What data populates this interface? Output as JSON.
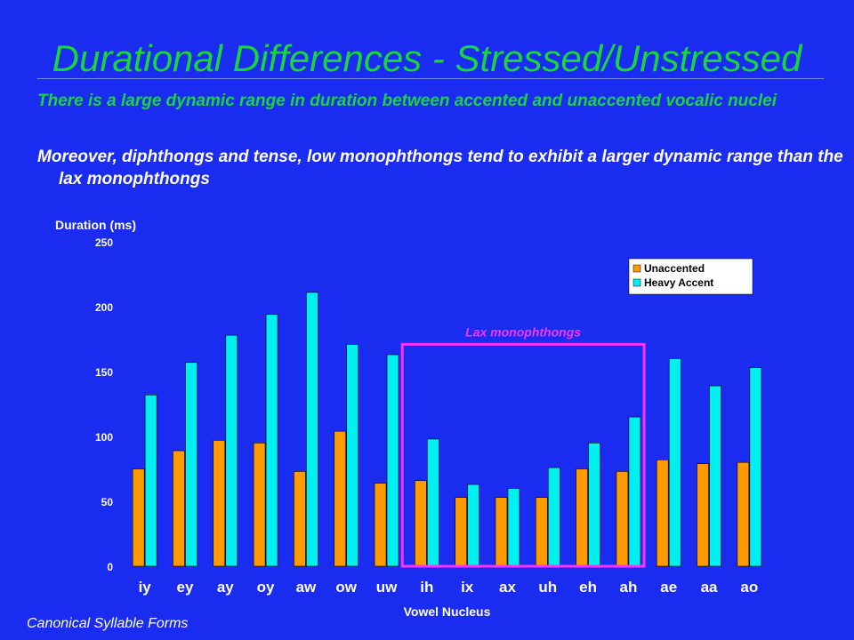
{
  "slide": {
    "title": "Durational Differences - Stressed/Unstressed",
    "bullets": [
      "There is a large dynamic range in duration between accented and unaccented vocalic nuclei",
      "Moreover, diphthongs and tense, low monophthongs tend to exhibit a larger dynamic range than the lax monophthongs"
    ],
    "footer": "Canonical Syllable Forms"
  },
  "colors": {
    "background": "#1a2cf0",
    "title_green": "#19d63a",
    "unaccented": "#ff9a00",
    "heavy_accent": "#00f0f0",
    "highlight_box": "#ff33ff"
  },
  "chart_data": {
    "type": "bar",
    "title": "",
    "ylabel": "Duration (ms)",
    "xlabel": "Vowel Nucleus",
    "ylim": [
      0,
      250
    ],
    "yticks": [
      0,
      50,
      100,
      150,
      200,
      250
    ],
    "grid": false,
    "legend_position": "top-right",
    "categories": [
      "iy",
      "ey",
      "ay",
      "oy",
      "aw",
      "ow",
      "uw",
      "ih",
      "ix",
      "ax",
      "uh",
      "eh",
      "ah",
      "ae",
      "aa",
      "ao"
    ],
    "series": [
      {
        "name": "Unaccented",
        "values": [
          75,
          89,
          97,
          95,
          73,
          104,
          64,
          66,
          53,
          53,
          53,
          75,
          73,
          82,
          79,
          80
        ]
      },
      {
        "name": "Heavy Accent",
        "values": [
          132,
          157,
          178,
          194,
          211,
          171,
          163,
          98,
          63,
          60,
          76,
          95,
          115,
          160,
          139,
          153
        ]
      }
    ],
    "annotation": {
      "label": "Lax monophthongs",
      "from_category": "ih",
      "to_category": "ah",
      "box_top_value": 171
    }
  }
}
